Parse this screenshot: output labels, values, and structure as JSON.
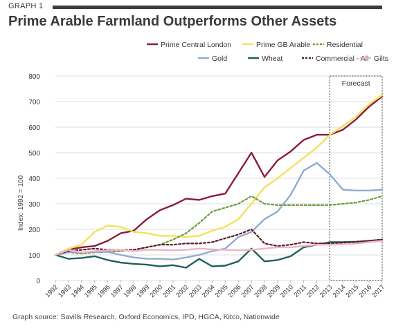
{
  "header": {
    "graph_label": "GRAPH 1",
    "title": "Prime Arable Farmland Outperforms Other Assets"
  },
  "footer": {
    "source": "Graph source: Savills Research, Oxford Economics, IPD, HGCA, Kitco, Nationwide"
  },
  "chart_data": {
    "type": "line",
    "title": "Prime Arable Farmland Outperforms Other Assets",
    "ylabel": "Index: 1992 = 100",
    "xlabel": "",
    "ylim": [
      0,
      800
    ],
    "yticks": [
      0,
      100,
      200,
      300,
      400,
      500,
      600,
      700,
      800
    ],
    "x": [
      "1992",
      "1993",
      "1994",
      "1995",
      "1996",
      "1997",
      "1998",
      "1999",
      "2000",
      "2001",
      "2002",
      "2003",
      "2004",
      "2005",
      "2006",
      "2007",
      "2008",
      "2009",
      "2010",
      "2011",
      "2012",
      "2013",
      "2014",
      "2015",
      "2016",
      "2017"
    ],
    "grid": "horizontal",
    "legend_position": "top",
    "forecast": {
      "label": "Forecast",
      "from": "2013",
      "to": "2017"
    },
    "series": [
      {
        "name": "Prime Central London",
        "color": "#8b1a3c",
        "dash": "solid",
        "values": [
          100,
          120,
          130,
          135,
          155,
          185,
          195,
          240,
          275,
          295,
          320,
          315,
          330,
          340,
          420,
          500,
          405,
          470,
          505,
          550,
          570,
          570,
          590,
          630,
          680,
          720
        ]
      },
      {
        "name": "Prime GB Arable",
        "color": "#f2e25b",
        "dash": "solid",
        "values": [
          100,
          125,
          140,
          190,
          215,
          210,
          190,
          185,
          175,
          175,
          170,
          175,
          195,
          210,
          240,
          300,
          365,
          400,
          440,
          480,
          520,
          570,
          605,
          640,
          690,
          725
        ]
      },
      {
        "name": "Residential",
        "color": "#6f9a3a",
        "dash": "dashed",
        "values": [
          100,
          110,
          105,
          110,
          112,
          115,
          120,
          130,
          140,
          160,
          185,
          225,
          270,
          285,
          300,
          330,
          300,
          295,
          295,
          295,
          295,
          295,
          300,
          305,
          315,
          330
        ]
      },
      {
        "name": "Gold",
        "color": "#8fabd0",
        "dash": "solid",
        "values": [
          100,
          110,
          110,
          112,
          112,
          100,
          90,
          85,
          85,
          82,
          90,
          100,
          115,
          125,
          170,
          190,
          240,
          270,
          335,
          430,
          460,
          415,
          355,
          352,
          352,
          355
        ]
      },
      {
        "name": "Wheat",
        "color": "#1f5f5b",
        "dash": "solid",
        "values": [
          100,
          85,
          88,
          95,
          80,
          70,
          65,
          62,
          55,
          60,
          50,
          85,
          55,
          58,
          75,
          125,
          75,
          80,
          95,
          130,
          140,
          150,
          150,
          152,
          155,
          160
        ]
      },
      {
        "name": "Commercial - All",
        "color": "#5a1a2a",
        "dash": "dashed",
        "values": [
          100,
          115,
          120,
          125,
          120,
          120,
          120,
          130,
          140,
          140,
          145,
          145,
          150,
          165,
          180,
          200,
          145,
          135,
          140,
          150,
          145,
          145,
          148,
          150,
          155,
          160
        ]
      },
      {
        "name": "Gilts",
        "color": "#f0b3c0",
        "dash": "solid",
        "values": [
          100,
          120,
          110,
          115,
          118,
          120,
          115,
          120,
          120,
          118,
          120,
          125,
          122,
          120,
          118,
          120,
          125,
          130,
          130,
          135,
          140,
          140,
          142,
          145,
          150,
          155
        ]
      }
    ]
  }
}
